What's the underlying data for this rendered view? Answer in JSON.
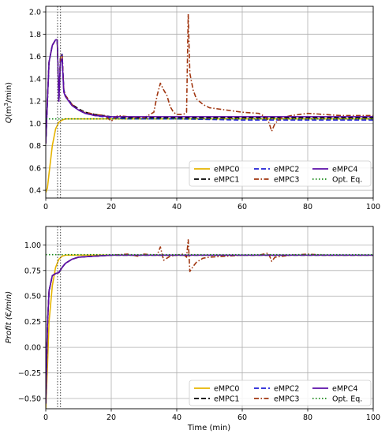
{
  "chart_data": [
    {
      "type": "line",
      "ylabel": "Q(m³/min)",
      "ylabel_html_parts": [
        "Q",
        "(m",
        "3",
        "/min)"
      ],
      "xlabel": "",
      "xlim": [
        0,
        100
      ],
      "ylim": [
        0.33,
        2.05
      ],
      "xticks": [
        0,
        20,
        40,
        60,
        80,
        100
      ],
      "xtick_labels": [
        "0",
        "20",
        "40",
        "60",
        "80",
        "100"
      ],
      "yticks": [
        0.4,
        0.6,
        0.8,
        1.0,
        1.2,
        1.4,
        1.6,
        1.8,
        2.0
      ],
      "ytick_labels": [
        "0.4",
        "0.6",
        "0.8",
        "1.0",
        "1.2",
        "1.4",
        "1.6",
        "1.8",
        "2.0"
      ],
      "grid": true,
      "legend_position": "lower-right",
      "vlines": [
        3.6,
        4.5
      ],
      "series": [
        {
          "name": "eMPC0",
          "color": "#e6b400",
          "style": "solid",
          "x": [
            0,
            0.5,
            1,
            2,
            3,
            4,
            5,
            6,
            8,
            10,
            15,
            20,
            30,
            40,
            50,
            60,
            80,
            100
          ],
          "y": [
            0.38,
            0.42,
            0.55,
            0.8,
            0.95,
            1.01,
            1.03,
            1.04,
            1.04,
            1.04,
            1.04,
            1.04,
            1.04,
            1.04,
            1.04,
            1.04,
            1.04,
            1.04
          ]
        },
        {
          "name": "eMPC1",
          "color": "#000000",
          "style": "dashed",
          "x": [
            0,
            0.5,
            1,
            2,
            3,
            3.5,
            4,
            4.5,
            5,
            5.5,
            6,
            7,
            8,
            10,
            12,
            15,
            20,
            25,
            30,
            40,
            60,
            80,
            100
          ],
          "y": [
            0.82,
            1.2,
            1.55,
            1.7,
            1.75,
            1.75,
            1.2,
            1.6,
            1.62,
            1.3,
            1.25,
            1.21,
            1.17,
            1.13,
            1.1,
            1.08,
            1.06,
            1.05,
            1.05,
            1.05,
            1.05,
            1.05,
            1.05
          ]
        },
        {
          "name": "eMPC2",
          "color": "#1f1fd6",
          "style": "dashed",
          "x": [
            0,
            0.5,
            1,
            2,
            3,
            3.5,
            4,
            4.5,
            5,
            5.5,
            6,
            7,
            8,
            10,
            12,
            15,
            20,
            25,
            30,
            40,
            60,
            80,
            100
          ],
          "y": [
            0.82,
            1.2,
            1.55,
            1.7,
            1.75,
            1.75,
            1.2,
            1.6,
            1.62,
            1.3,
            1.25,
            1.21,
            1.16,
            1.12,
            1.09,
            1.07,
            1.05,
            1.04,
            1.04,
            1.04,
            1.03,
            1.03,
            1.03
          ]
        },
        {
          "name": "eMPC3",
          "color": "#a0350f",
          "style": "dashdot",
          "x": [
            0,
            0.5,
            1,
            2,
            3,
            3.5,
            4,
            4.5,
            5,
            5.5,
            6,
            7,
            8,
            10,
            12,
            15,
            18,
            20,
            22,
            25,
            30,
            33,
            34,
            35,
            36,
            37,
            38,
            39,
            40,
            42,
            43,
            43.5,
            44,
            45,
            46,
            48,
            50,
            55,
            60,
            65,
            67,
            68,
            69,
            70,
            72,
            75,
            80,
            85,
            90,
            95,
            100
          ],
          "y": [
            0.82,
            1.2,
            1.55,
            1.7,
            1.75,
            1.75,
            1.2,
            1.6,
            1.62,
            1.3,
            1.25,
            1.21,
            1.17,
            1.12,
            1.1,
            1.08,
            1.07,
            1.02,
            1.07,
            1.06,
            1.05,
            1.1,
            1.25,
            1.36,
            1.3,
            1.25,
            1.15,
            1.1,
            1.08,
            1.08,
            1.1,
            1.98,
            1.45,
            1.3,
            1.22,
            1.17,
            1.14,
            1.12,
            1.1,
            1.09,
            1.06,
            1.02,
            0.93,
            1.0,
            1.05,
            1.07,
            1.09,
            1.08,
            1.07,
            1.07,
            1.07
          ]
        },
        {
          "name": "eMPC4",
          "color": "#5b0fa8",
          "style": "solid",
          "x": [
            0,
            0.5,
            1,
            2,
            3,
            3.5,
            4,
            4.5,
            5,
            5.5,
            6,
            7,
            8,
            10,
            12,
            15,
            20,
            25,
            30,
            40,
            60,
            80,
            100
          ],
          "y": [
            0.82,
            1.2,
            1.55,
            1.7,
            1.75,
            1.75,
            1.2,
            1.55,
            1.58,
            1.28,
            1.24,
            1.2,
            1.16,
            1.12,
            1.09,
            1.07,
            1.06,
            1.06,
            1.06,
            1.06,
            1.06,
            1.06,
            1.06
          ]
        },
        {
          "name": "Opt. Eq.",
          "color": "#1a8a1a",
          "style": "dotted",
          "x": [
            0,
            100
          ],
          "y": [
            1.04,
            1.04
          ]
        }
      ]
    },
    {
      "type": "line",
      "ylabel": "Profit (€/min)",
      "xlabel": "Time (min)",
      "xlim": [
        0,
        100
      ],
      "ylim": [
        -0.6,
        1.18
      ],
      "xticks": [
        0,
        20,
        40,
        60,
        80,
        100
      ],
      "xtick_labels": [
        "0",
        "20",
        "40",
        "60",
        "80",
        "100"
      ],
      "yticks": [
        -0.5,
        -0.25,
        0.0,
        0.25,
        0.5,
        0.75,
        1.0
      ],
      "ytick_labels": [
        "−0.50",
        "−0.25",
        "0.00",
        "0.25",
        "0.50",
        "0.75",
        "1.00"
      ],
      "grid": true,
      "legend_position": "lower-right",
      "vlines": [
        3.6,
        4.5
      ],
      "series": [
        {
          "name": "eMPC0",
          "color": "#e6b400",
          "style": "solid",
          "x": [
            0,
            0.5,
            1,
            2,
            3,
            4,
            5,
            6,
            8,
            10,
            15,
            20,
            40,
            60,
            80,
            100
          ],
          "y": [
            -0.6,
            -0.2,
            0.25,
            0.6,
            0.78,
            0.86,
            0.89,
            0.9,
            0.9,
            0.9,
            0.9,
            0.9,
            0.9,
            0.9,
            0.9,
            0.9
          ]
        },
        {
          "name": "eMPC1",
          "color": "#000000",
          "style": "dashed",
          "x": [
            0,
            0.5,
            1,
            2,
            3,
            4,
            5,
            6,
            8,
            10,
            15,
            20,
            40,
            60,
            80,
            100
          ],
          "y": [
            -0.55,
            0.2,
            0.55,
            0.7,
            0.72,
            0.73,
            0.78,
            0.82,
            0.86,
            0.88,
            0.89,
            0.9,
            0.9,
            0.9,
            0.9,
            0.9
          ]
        },
        {
          "name": "eMPC2",
          "color": "#1f1fd6",
          "style": "dashed",
          "x": [
            0,
            0.5,
            1,
            2,
            3,
            4,
            5,
            6,
            8,
            10,
            15,
            20,
            40,
            60,
            80,
            100
          ],
          "y": [
            -0.55,
            0.2,
            0.55,
            0.7,
            0.72,
            0.73,
            0.78,
            0.82,
            0.86,
            0.88,
            0.89,
            0.9,
            0.9,
            0.9,
            0.9,
            0.9
          ]
        },
        {
          "name": "eMPC3",
          "color": "#a0350f",
          "style": "dashdot",
          "x": [
            0,
            0.5,
            1,
            2,
            3,
            4,
            5,
            6,
            8,
            10,
            15,
            20,
            25,
            28,
            30,
            34,
            35,
            36,
            38,
            40,
            42,
            43,
            43.5,
            44,
            45,
            46,
            48,
            50,
            55,
            60,
            65,
            68,
            69,
            70,
            75,
            80,
            85,
            90,
            95,
            100
          ],
          "y": [
            -0.55,
            0.2,
            0.55,
            0.7,
            0.72,
            0.73,
            0.78,
            0.82,
            0.86,
            0.88,
            0.89,
            0.9,
            0.91,
            0.89,
            0.91,
            0.9,
            0.98,
            0.85,
            0.89,
            0.9,
            0.91,
            0.88,
            1.05,
            0.74,
            0.79,
            0.83,
            0.87,
            0.88,
            0.89,
            0.9,
            0.9,
            0.92,
            0.84,
            0.88,
            0.9,
            0.91,
            0.9,
            0.9,
            0.9,
            0.9
          ]
        },
        {
          "name": "eMPC4",
          "color": "#5b0fa8",
          "style": "solid",
          "x": [
            0,
            0.5,
            1,
            2,
            3,
            4,
            5,
            6,
            8,
            10,
            15,
            20,
            40,
            60,
            80,
            100
          ],
          "y": [
            -0.55,
            0.2,
            0.55,
            0.7,
            0.72,
            0.73,
            0.78,
            0.82,
            0.86,
            0.88,
            0.89,
            0.9,
            0.9,
            0.9,
            0.9,
            0.9
          ]
        },
        {
          "name": "Opt. Eq.",
          "color": "#1a8a1a",
          "style": "dotted",
          "x": [
            0,
            100
          ],
          "y": [
            0.905,
            0.905
          ]
        }
      ]
    }
  ]
}
